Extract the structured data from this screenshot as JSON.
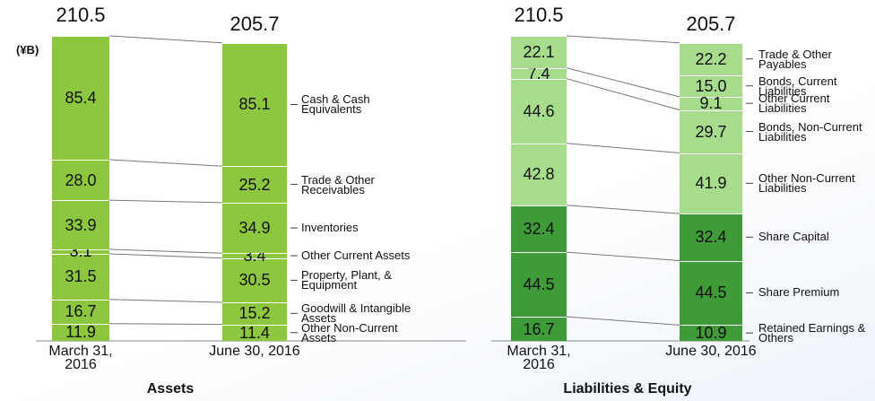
{
  "chart_data": [
    {
      "type": "bar",
      "stacked": true,
      "title": "Assets",
      "unit": "(¥B)",
      "categories": [
        "March 31, 2016",
        "June 30, 2016"
      ],
      "totals": [
        210.5,
        205.7
      ],
      "series": [
        {
          "name": "Other Non-Current Assets",
          "color": "#8dc63f",
          "values": [
            11.9,
            11.4
          ],
          "value_labels": [
            "11.9",
            "11.4"
          ]
        },
        {
          "name": "Goodwill & Intangible Assets",
          "color": "#8dc63f",
          "values": [
            16.7,
            15.2
          ],
          "value_labels": [
            "16.7",
            "15.2"
          ]
        },
        {
          "name": "Property, Plant, & Equipment",
          "color": "#8dc63f",
          "values": [
            31.5,
            30.5
          ],
          "value_labels": [
            "31.5",
            "30.5"
          ]
        },
        {
          "name": "Other Current Assets",
          "color": "#8dc63f",
          "values": [
            3.1,
            3.4
          ],
          "value_labels": [
            "3.1",
            "3.4"
          ]
        },
        {
          "name": "Inventories",
          "color": "#8dc63f",
          "values": [
            33.9,
            34.9
          ],
          "value_labels": [
            "33.9",
            "34.9"
          ]
        },
        {
          "name": "Trade & Other Receivables",
          "color": "#8dc63f",
          "values": [
            28.0,
            25.2
          ],
          "value_labels": [
            "28.0",
            "25.2"
          ]
        },
        {
          "name": "Cash & Cash Equivalents",
          "color": "#8dc63f",
          "values": [
            85.4,
            85.1
          ],
          "value_labels": [
            "85.4",
            "85.1"
          ]
        }
      ]
    },
    {
      "type": "bar",
      "stacked": true,
      "title": "Liabilities & Equity",
      "categories": [
        "March 31, 2016",
        "June 30, 2016"
      ],
      "totals": [
        210.5,
        205.7
      ],
      "series": [
        {
          "name": "Retained Earnings & Others",
          "color": "#3e9b38",
          "values": [
            16.7,
            10.9
          ],
          "value_labels": [
            "16.7",
            "10.9"
          ]
        },
        {
          "name": "Share Premium",
          "color": "#3e9b38",
          "values": [
            44.5,
            44.5
          ],
          "value_labels": [
            "44.5",
            "44.5"
          ]
        },
        {
          "name": "Share Capital",
          "color": "#3e9b38",
          "values": [
            32.4,
            32.4
          ],
          "value_labels": [
            "32.4",
            "32.4"
          ]
        },
        {
          "name": "Other Non-Current Liabilities",
          "color": "#a6dc8c",
          "values": [
            42.8,
            41.9
          ],
          "value_labels": [
            "42.8",
            "41.9"
          ]
        },
        {
          "name": "Bonds, Non-Current Liabilities",
          "color": "#a6dc8c",
          "values": [
            44.6,
            29.7
          ],
          "value_labels": [
            "44.6",
            "29.7"
          ]
        },
        {
          "name": "Other Current Liabilities",
          "color": "#a6dc8c",
          "values": [
            7.4,
            9.1
          ],
          "value_labels": [
            "7.4",
            "9.1"
          ]
        },
        {
          "name": "Bonds, Current Liabilities",
          "color": "#a6dc8c",
          "values": [
            null,
            15.0
          ],
          "value_labels": [
            null,
            "15.0"
          ]
        },
        {
          "name": "Trade & Other Payables",
          "color": "#a6dc8c",
          "values": [
            22.1,
            22.2
          ],
          "value_labels": [
            "22.1",
            "22.2"
          ]
        }
      ]
    }
  ]
}
